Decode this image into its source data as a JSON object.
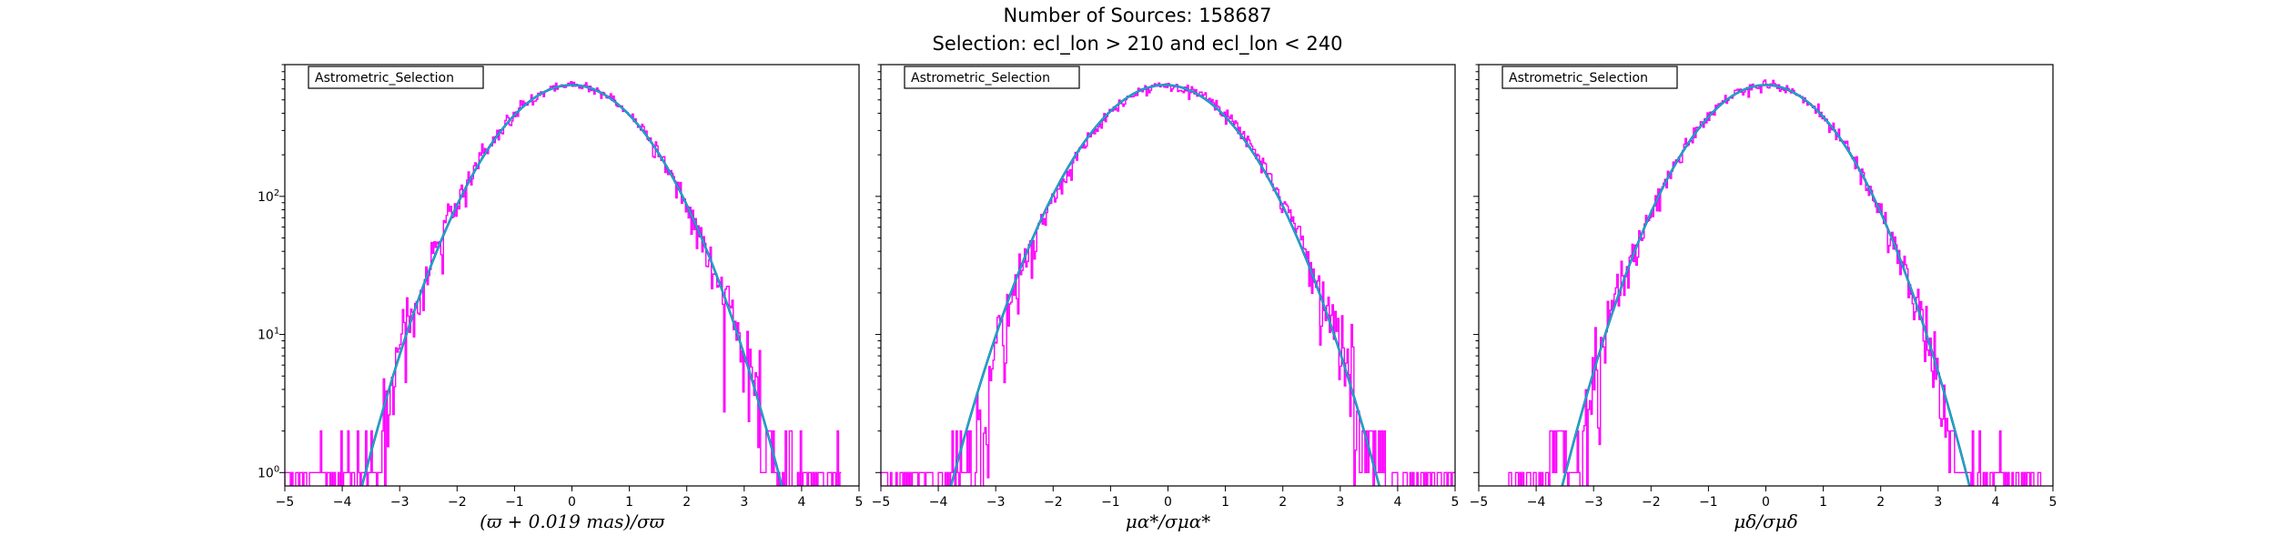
{
  "suptitle": {
    "line1": "Number of Sources: 158687",
    "line2": "Selection: ecl_lon > 210 and ecl_lon < 240"
  },
  "colors": {
    "histogram": "#ff00ff",
    "fit_curve": "#1f77b4",
    "fit_curve_overlay": "#17becf"
  },
  "chart_data": [
    {
      "type": "line",
      "legend": "Astrometric_Selection",
      "legend_placement": "top-left",
      "xlabel": "(ϖ + 0.019 mas)/σϖ",
      "xlim": [
        -5,
        5
      ],
      "xticks": [
        "−5",
        "−4",
        "−3",
        "−2",
        "−1",
        "0",
        "1",
        "2",
        "3",
        "4",
        "5"
      ],
      "yscale": "log",
      "ylim": [
        0.8,
        900
      ],
      "yticks": [
        {
          "base": "10",
          "exp": "0"
        },
        {
          "base": "10",
          "exp": "1"
        },
        {
          "base": "10",
          "exp": "2"
        }
      ],
      "grid": false,
      "series": [
        {
          "kind": "histogram",
          "description": "noisy normalized residual counts",
          "peak": 640,
          "sigma": 1.0,
          "x_range": [
            -5,
            4.7
          ]
        },
        {
          "kind": "gaussian_fit",
          "peak": 640,
          "mean": 0.0,
          "sigma": 1.0
        }
      ]
    },
    {
      "type": "line",
      "legend": "Astrometric_Selection",
      "legend_placement": "top-left",
      "xlabel": "μα*/σμα*",
      "xlim": [
        -5,
        5
      ],
      "xticks": [
        "−5",
        "−4",
        "−3",
        "−2",
        "−1",
        "0",
        "1",
        "2",
        "3",
        "4",
        "5"
      ],
      "yscale": "log",
      "ylim": [
        0.8,
        900
      ],
      "grid": false,
      "series": [
        {
          "kind": "histogram",
          "description": "noisy normalized residual counts",
          "peak": 640,
          "sigma": 1.02,
          "x_range": [
            -5,
            5
          ]
        },
        {
          "kind": "gaussian_fit",
          "peak": 640,
          "mean": -0.05,
          "sigma": 1.02
        }
      ]
    },
    {
      "type": "line",
      "legend": "Astrometric_Selection",
      "legend_placement": "top-left",
      "xlabel": "μδ/σμδ",
      "xlim": [
        -5,
        5
      ],
      "xticks": [
        "−5",
        "−4",
        "−3",
        "−2",
        "−1",
        "0",
        "1",
        "2",
        "3",
        "4",
        "5"
      ],
      "yscale": "log",
      "ylim": [
        0.8,
        900
      ],
      "grid": false,
      "series": [
        {
          "kind": "histogram",
          "description": "noisy normalized residual counts",
          "peak": 640,
          "sigma": 0.97,
          "x_range": [
            -4.5,
            4.8
          ]
        },
        {
          "kind": "gaussian_fit",
          "peak": 640,
          "mean": 0.0,
          "sigma": 0.97
        }
      ]
    }
  ]
}
